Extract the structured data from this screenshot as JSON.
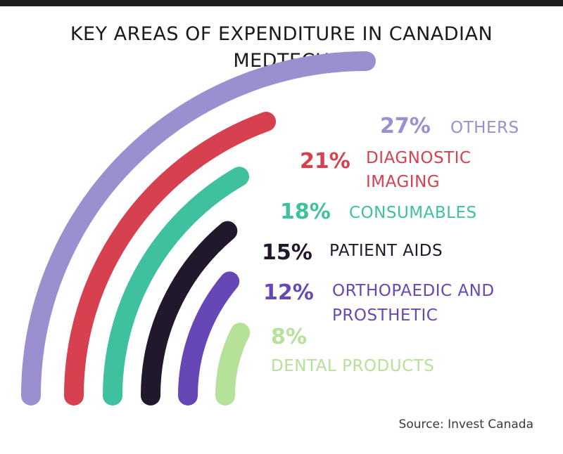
{
  "title_lines": [
    "KEY AREAS OF EXPENDITURE IN CANADIAN",
    "MEDTECH"
  ],
  "source": "Source: Invest Canada",
  "chart_data": {
    "type": "radial-bar",
    "title": "KEY AREAS OF EXPENDITURE IN CANADIAN MEDTECH",
    "unit": "%",
    "categories": [
      "OTHERS",
      "DIAGNOSTIC IMAGING",
      "CONSUMABLES",
      "PATIENT AIDS",
      "ORTHOPAEDIC AND PROSTHETIC",
      "DENTAL PRODUCTS"
    ],
    "values": [
      27,
      21,
      18,
      15,
      12,
      8
    ],
    "series": [
      {
        "value": 27,
        "percent_label": "27%",
        "label_lines": [
          "OTHERS"
        ],
        "color": "#9b8fd0"
      },
      {
        "value": 21,
        "percent_label": "21%",
        "label_lines": [
          "DIAGNOSTIC",
          "IMAGING"
        ],
        "color": "#d6404f"
      },
      {
        "value": 18,
        "percent_label": "18%",
        "label_lines": [
          "CONSUMABLES"
        ],
        "color": "#3fc1a0"
      },
      {
        "value": 15,
        "percent_label": "15%",
        "label_lines": [
          "PATIENT AIDS"
        ],
        "color": "#22182b"
      },
      {
        "value": 12,
        "percent_label": "12%",
        "label_lines": [
          "ORTHOPAEDIC AND",
          "PROSTHETIC"
        ],
        "color": "#6747b5"
      },
      {
        "value": 8,
        "percent_label": "8%",
        "label_lines": [
          "DENTAL PRODUCTS"
        ],
        "color": "#b5e199"
      }
    ],
    "source": "Source: Invest Canada"
  }
}
